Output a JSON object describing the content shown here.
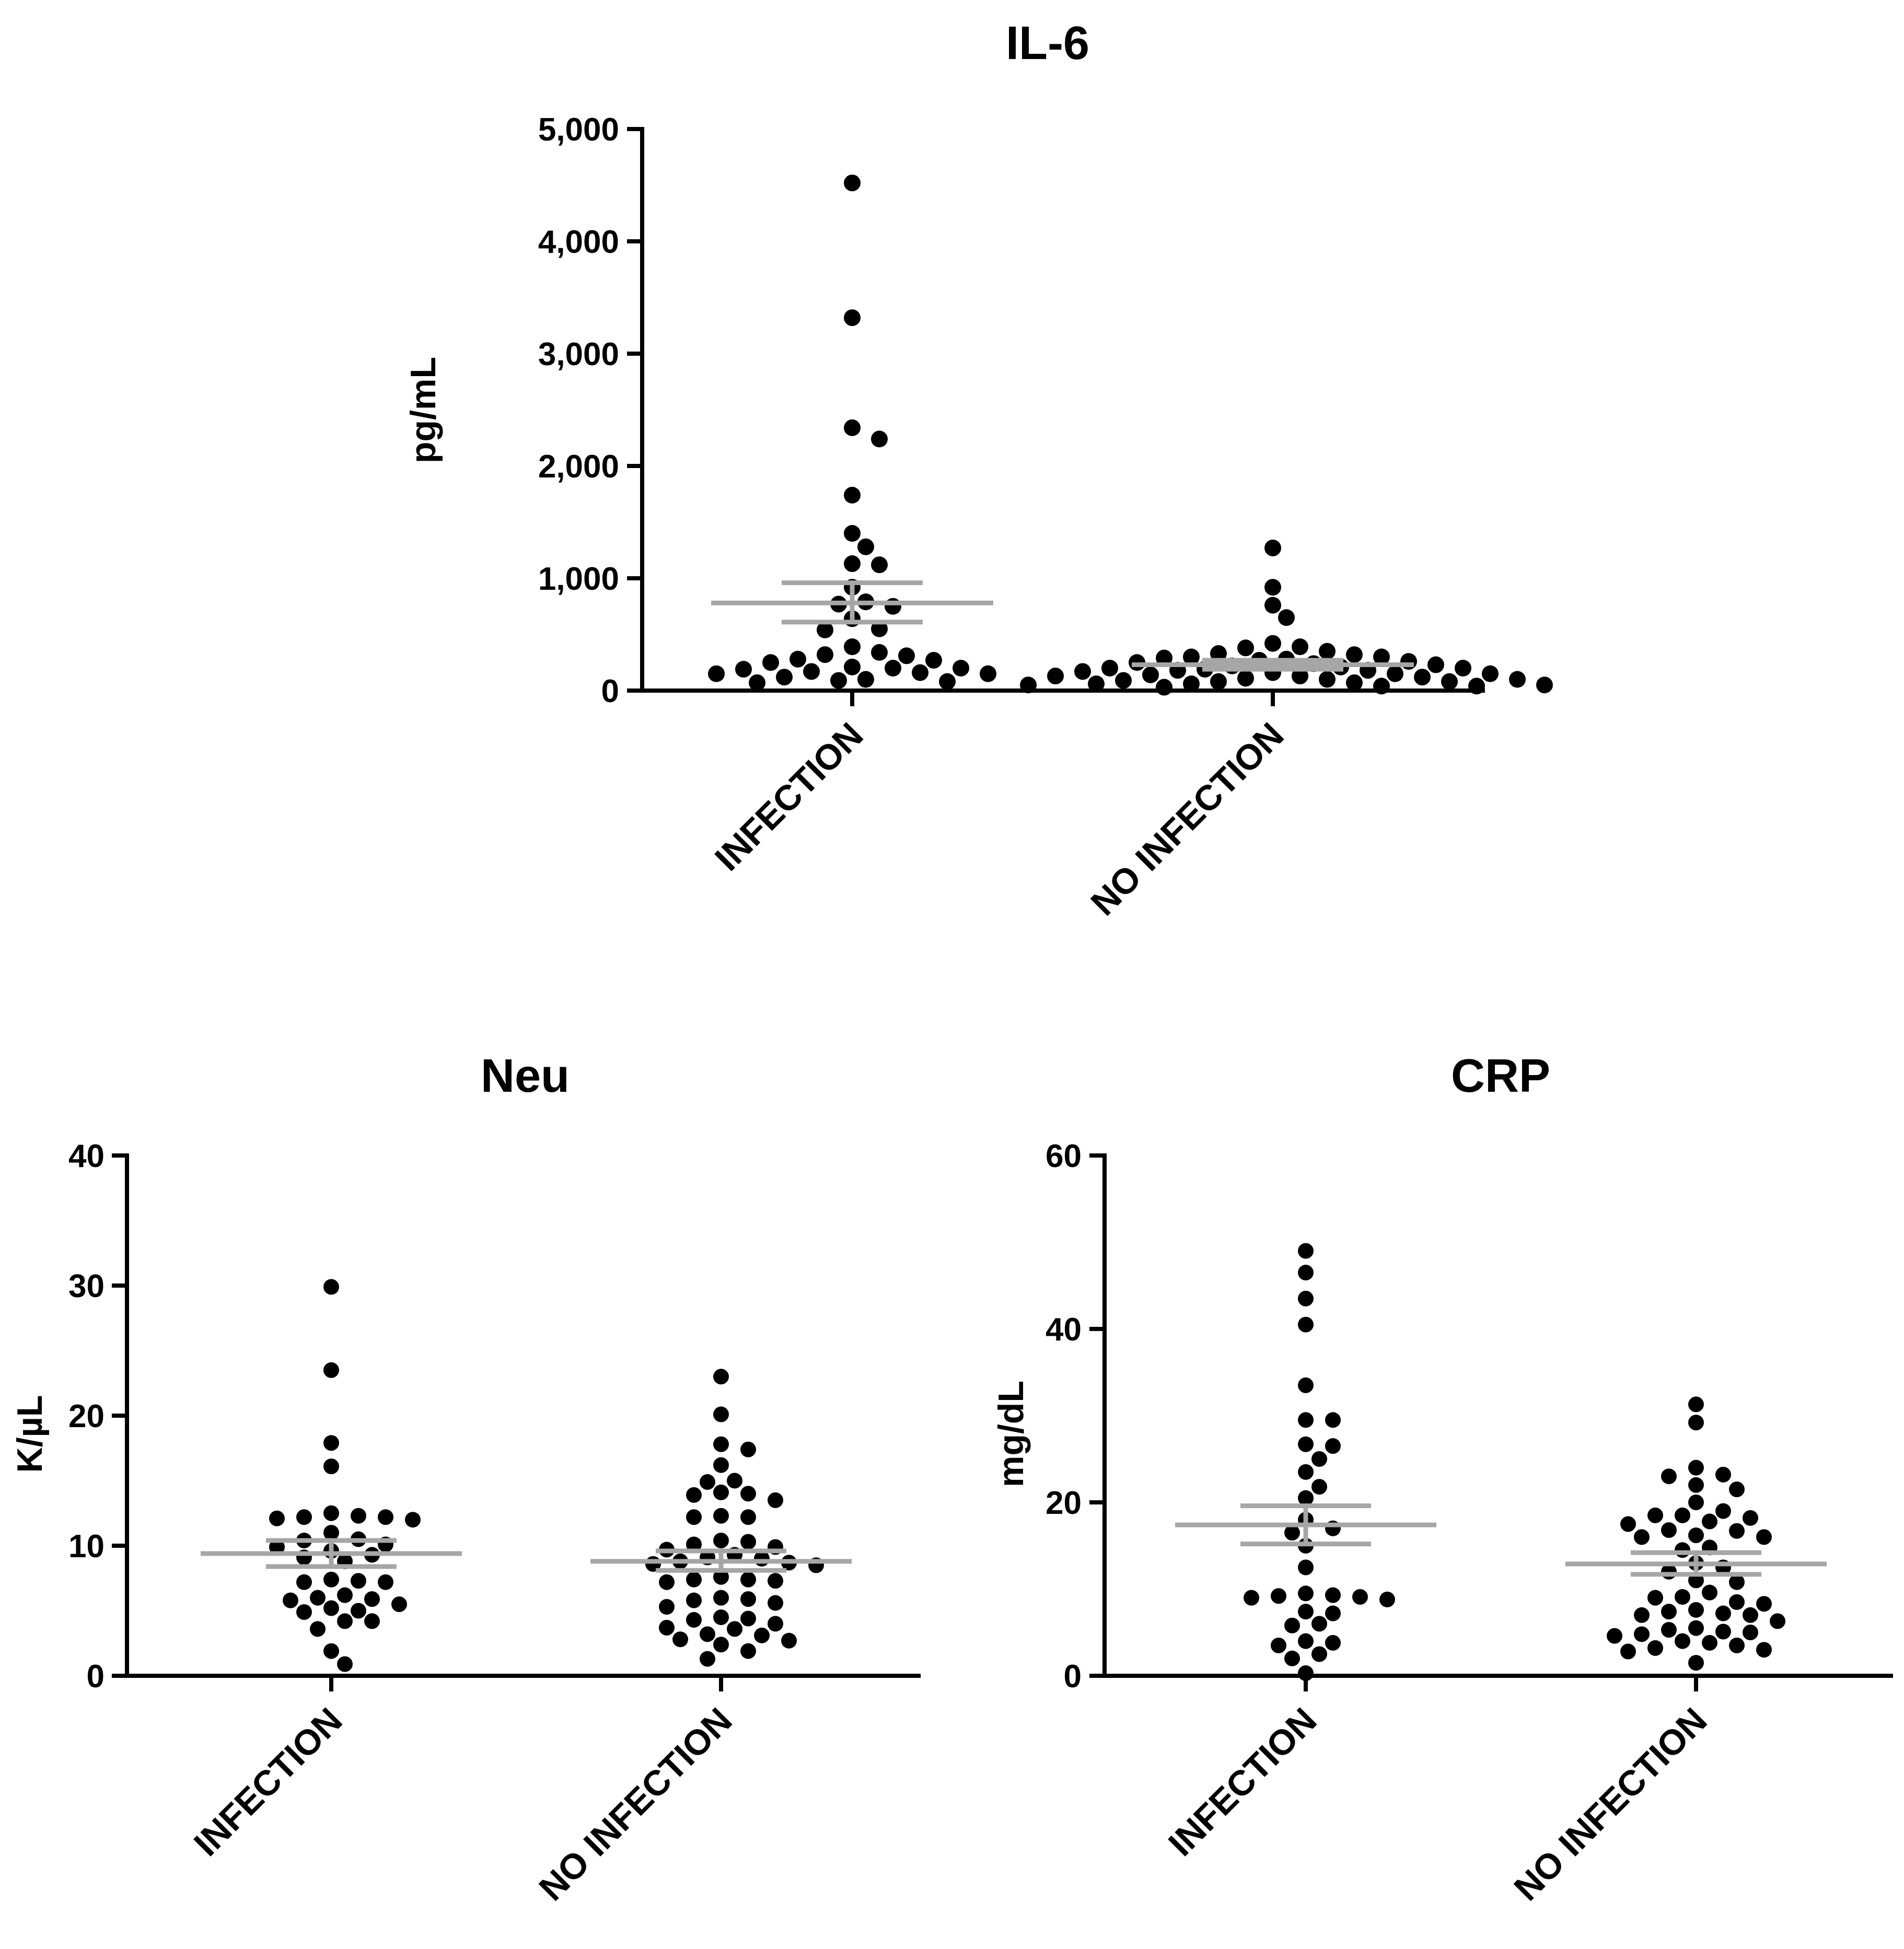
{
  "chart_data": [
    {
      "id": "il6",
      "type": "scatter",
      "title": "IL-6",
      "xlabel": "",
      "ylabel": "pg/mL",
      "ylim": [
        0,
        5000
      ],
      "yticks": [
        0,
        1000,
        2000,
        3000,
        4000,
        5000
      ],
      "ytick_labels": [
        "0",
        "1,000",
        "2,000",
        "3,000",
        "4,000",
        "5,000"
      ],
      "categories": [
        "INFECTION",
        "NO INFECTION"
      ],
      "series": [
        {
          "name": "INFECTION",
          "mean": 780,
          "sem_low": 610,
          "sem_high": 960,
          "points": [
            4520,
            3320,
            2340,
            2240,
            1740,
            1400,
            1280,
            1130,
            1120,
            920,
            790,
            770,
            750,
            640,
            550,
            540,
            390,
            340,
            320,
            310,
            280,
            270,
            250,
            210,
            200,
            200,
            190,
            170,
            160,
            150,
            150,
            120,
            100,
            90,
            80,
            70
          ]
        },
        {
          "name": "NO INFECTION",
          "mean": 230,
          "sem_low": 190,
          "sem_high": 270,
          "points": [
            1270,
            920,
            760,
            650,
            420,
            390,
            380,
            350,
            330,
            320,
            300,
            300,
            290,
            280,
            270,
            260,
            250,
            240,
            230,
            220,
            210,
            200,
            200,
            190,
            180,
            180,
            170,
            160,
            150,
            150,
            140,
            130,
            130,
            120,
            110,
            100,
            100,
            90,
            80,
            80,
            70,
            60,
            60,
            50,
            50,
            40,
            40,
            30
          ]
        }
      ]
    },
    {
      "id": "neu",
      "type": "scatter",
      "title": "Neu",
      "xlabel": "",
      "ylabel": "K/µL",
      "ylim": [
        0,
        40
      ],
      "yticks": [
        0,
        10,
        20,
        30,
        40
      ],
      "ytick_labels": [
        "0",
        "10",
        "20",
        "30",
        "40"
      ],
      "categories": [
        "INFECTION",
        "NO INFECTION"
      ],
      "series": [
        {
          "name": "INFECTION",
          "mean": 9.4,
          "sem_low": 8.4,
          "sem_high": 10.4,
          "points": [
            29.9,
            23.5,
            17.9,
            16.1,
            12.5,
            12.3,
            12.2,
            12.2,
            12.1,
            12.0,
            11.0,
            10.5,
            10.4,
            10.1,
            9.9,
            9.6,
            9.3,
            9.1,
            8.8,
            7.4,
            7.3,
            7.2,
            7.2,
            6.2,
            6.0,
            5.9,
            5.8,
            5.5,
            5.2,
            5.0,
            4.9,
            4.2,
            4.2,
            3.6,
            1.9,
            0.9
          ]
        },
        {
          "name": "NO INFECTION",
          "mean": 8.8,
          "sem_low": 8.1,
          "sem_high": 9.6,
          "points": [
            23.0,
            20.1,
            17.8,
            17.4,
            16.2,
            15.0,
            14.9,
            14.1,
            14.0,
            13.9,
            13.5,
            12.3,
            12.2,
            12.2,
            10.4,
            10.3,
            10.1,
            9.9,
            9.7,
            9.3,
            9.1,
            9.0,
            8.8,
            8.7,
            8.6,
            8.5,
            7.6,
            7.4,
            7.4,
            7.3,
            7.2,
            6.0,
            5.9,
            5.8,
            5.6,
            5.3,
            4.5,
            4.4,
            4.3,
            4.0,
            3.7,
            3.6,
            3.2,
            3.1,
            2.8,
            2.7,
            2.4,
            1.9,
            1.3
          ]
        }
      ]
    },
    {
      "id": "crp",
      "type": "scatter",
      "title": "CRP",
      "xlabel": "",
      "ylabel": "mg/dL",
      "ylim": [
        0,
        60
      ],
      "yticks": [
        0,
        20,
        40,
        60
      ],
      "ytick_labels": [
        "0",
        "20",
        "40",
        "60"
      ],
      "categories": [
        "INFECTION",
        "NO INFECTION"
      ],
      "series": [
        {
          "name": "INFECTION",
          "mean": 17.4,
          "sem_low": 15.2,
          "sem_high": 19.6,
          "points": [
            49.0,
            46.5,
            43.5,
            40.5,
            33.5,
            29.5,
            29.5,
            26.7,
            26.5,
            25.0,
            23.5,
            21.8,
            20.5,
            18.0,
            17.0,
            16.5,
            15.0,
            12.5,
            9.5,
            9.3,
            9.2,
            9.1,
            9.0,
            8.8,
            7.4,
            7.2,
            6.0,
            5.8,
            4.0,
            3.8,
            3.5,
            2.5,
            2.0,
            0.3
          ]
        },
        {
          "name": "NO INFECTION",
          "mean": 12.9,
          "sem_low": 11.7,
          "sem_high": 14.2,
          "points": [
            31.3,
            29.2,
            24.0,
            23.2,
            23.0,
            22.0,
            21.5,
            20.0,
            19.0,
            18.5,
            18.5,
            18.2,
            17.8,
            17.5,
            16.8,
            16.7,
            16.2,
            16.0,
            16.0,
            14.8,
            14.5,
            13.0,
            12.5,
            12.0,
            11.0,
            10.8,
            9.6,
            9.1,
            9.0,
            8.5,
            8.3,
            7.6,
            7.4,
            7.2,
            7.0,
            7.0,
            6.3,
            5.5,
            5.3,
            5.1,
            5.0,
            4.8,
            4.6,
            4.0,
            3.8,
            3.5,
            3.2,
            3.0,
            2.8,
            1.5
          ]
        }
      ]
    }
  ]
}
